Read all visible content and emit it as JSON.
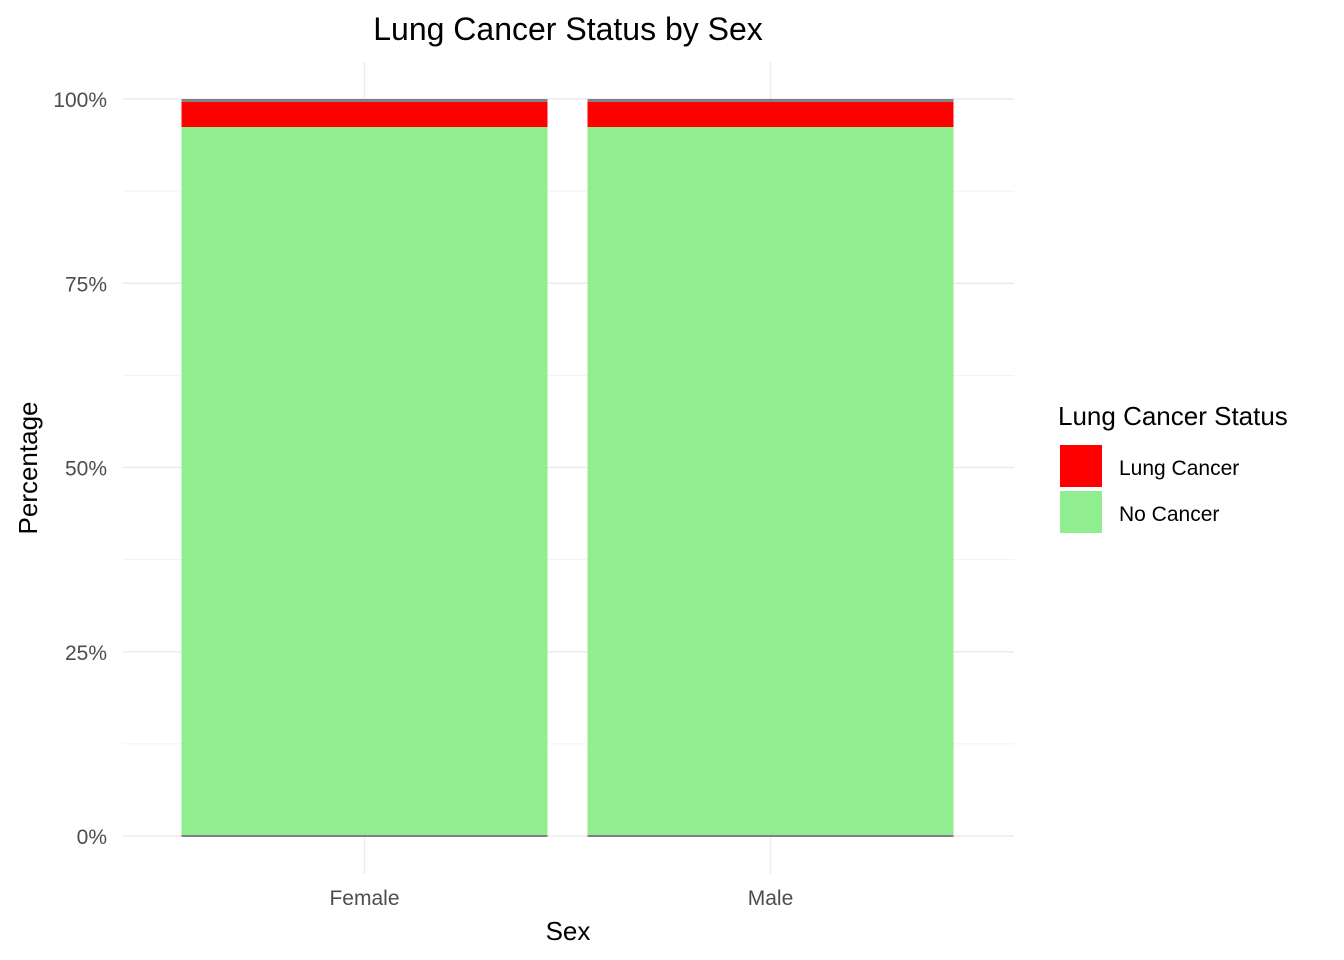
{
  "chart_data": {
    "type": "bar",
    "stacked": true,
    "title": "Lung Cancer Status by Sex",
    "xlabel": "Sex",
    "ylabel": "Percentage",
    "categories": [
      "Female",
      "Male"
    ],
    "series": [
      {
        "name": "No Cancer",
        "values": [
          96.2,
          96.2
        ],
        "color": "#90EE90"
      },
      {
        "name": "Lung Cancer",
        "values": [
          3.4,
          3.4
        ],
        "color": "#FF0000"
      },
      {
        "name": "",
        "values": [
          0.4,
          0.4
        ],
        "color": "#808080"
      }
    ],
    "ylim": [
      0,
      100
    ],
    "yticks": [
      0,
      25,
      50,
      75,
      100
    ],
    "ytick_labels": [
      "0%",
      "25%",
      "50%",
      "75%",
      "100%"
    ],
    "grid": true,
    "legend": {
      "title": "Lung Cancer Status",
      "placement": "right",
      "entries": [
        {
          "label": "Lung Cancer",
          "color": "#FF0000"
        },
        {
          "label": "No Cancer",
          "color": "#90EE90"
        }
      ]
    }
  }
}
